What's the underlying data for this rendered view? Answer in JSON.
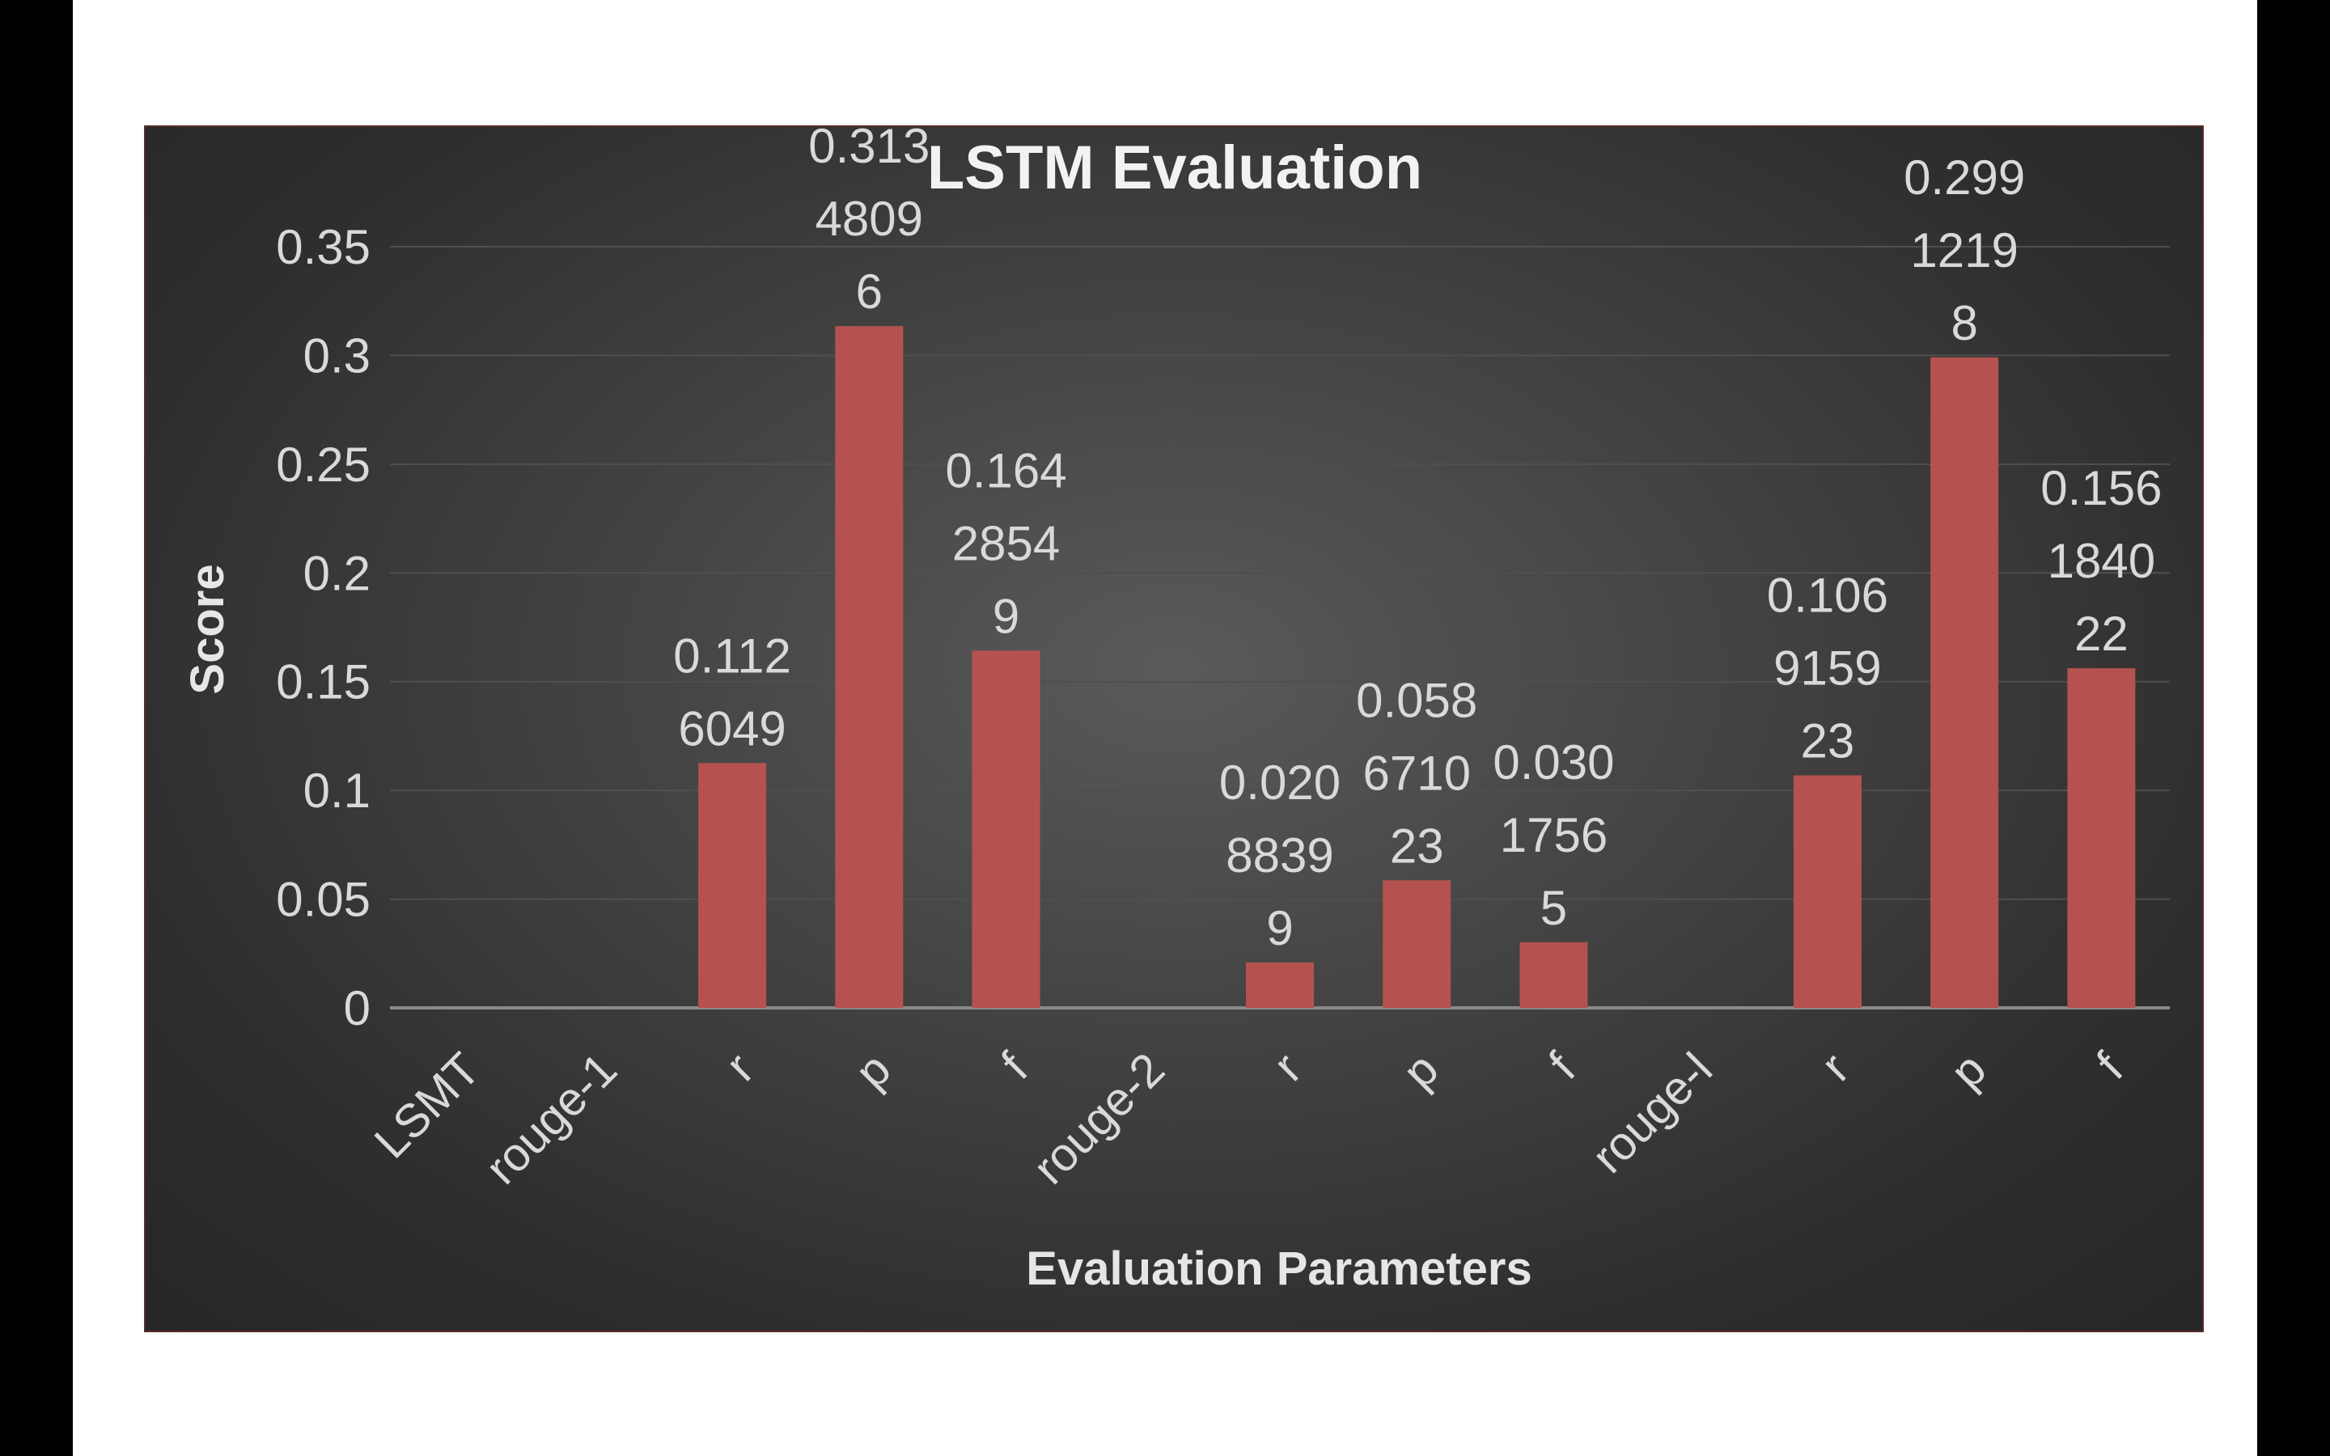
{
  "chart_data": {
    "type": "bar",
    "title": "LSTM Evaluation",
    "xlabel": "Evaluation Parameters",
    "ylabel": "Score",
    "ylim": [
      0,
      0.35
    ],
    "yticks": [
      "0",
      "0.05",
      "0.1",
      "0.15",
      "0.2",
      "0.25",
      "0.3",
      "0.35"
    ],
    "grid": true,
    "legend": "none",
    "bar_color": "#b5524f",
    "categories": [
      "LSMT",
      "rouge-1",
      "r",
      "p",
      "f",
      "rouge-2",
      "r",
      "p",
      "f",
      "rouge-l",
      "r",
      "p",
      "f"
    ],
    "values": [
      null,
      null,
      0.1126049,
      0.3134809,
      0.1642854,
      null,
      0.0208839,
      0.058671023,
      0.0301756,
      null,
      0.106915923,
      0.2991219,
      0.156184022
    ],
    "data_labels": [
      null,
      null,
      [
        "0.112",
        "6049"
      ],
      [
        "0.313",
        "4809",
        "6"
      ],
      [
        "0.164",
        "2854",
        "9"
      ],
      null,
      [
        "0.020",
        "8839",
        "9"
      ],
      [
        "0.058",
        "6710",
        "23"
      ],
      [
        "0.030",
        "1756",
        "5"
      ],
      null,
      [
        "0.106",
        "9159",
        "23"
      ],
      [
        "0.299",
        "1219",
        "8"
      ],
      [
        "0.156",
        "1840",
        "22"
      ]
    ]
  }
}
